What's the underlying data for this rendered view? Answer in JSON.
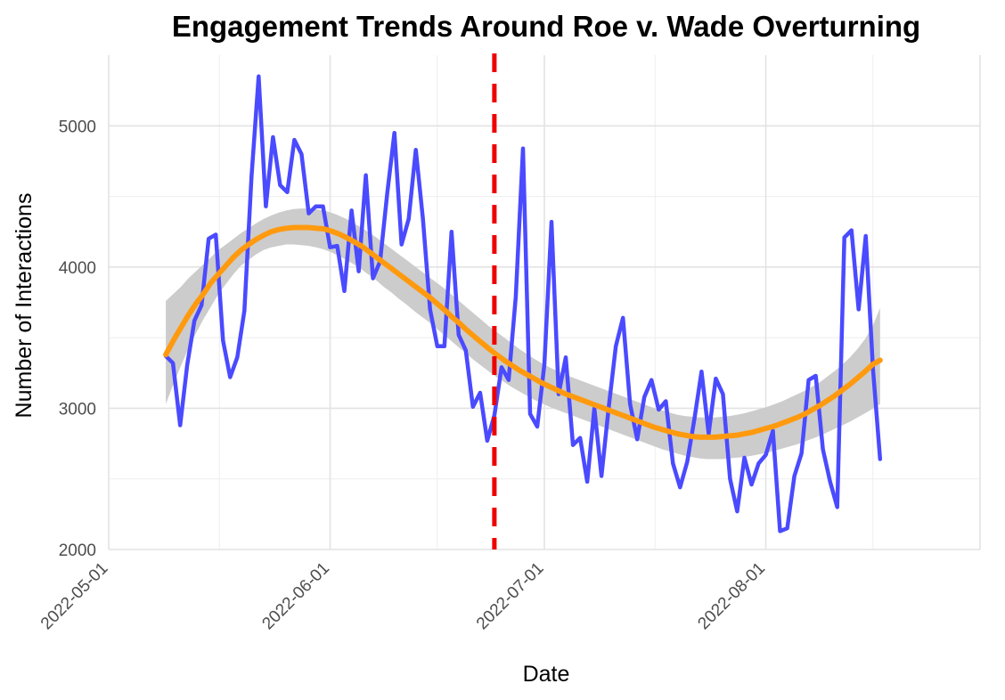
{
  "chart_data": {
    "type": "line",
    "title": "Engagement Trends Around Roe v. Wade Overturning",
    "xlabel": "Date",
    "ylabel": "Number of Interactions",
    "x_tick_labels": [
      "2022-05-01",
      "2022-06-01",
      "2022-07-01",
      "2022-08-01"
    ],
    "y_tick_labels": [
      "2000",
      "3000",
      "4000",
      "5000"
    ],
    "xlim": [
      "2022-05-01",
      "2022-08-31"
    ],
    "ylim": [
      2000,
      5500
    ],
    "grid": true,
    "legend": "none",
    "start_date": "2022-05-09",
    "series": [
      {
        "values": [
          3370,
          3320,
          2880,
          3310,
          3620,
          3730,
          4200,
          4230,
          3480,
          3220,
          3360,
          3690,
          4640,
          5350,
          4430,
          4920,
          4580,
          4530,
          4900,
          4800,
          4380,
          4430,
          4430,
          4140,
          4150,
          3830,
          4400,
          3970,
          4650,
          3920,
          4040,
          4520,
          4950,
          4160,
          4340,
          4830,
          4340,
          3700,
          3440,
          3440,
          4250,
          3520,
          3410,
          3010,
          3110,
          2770,
          2950,
          3290,
          3200,
          3790,
          4840,
          2960,
          2870,
          3310,
          4320,
          3100,
          3360,
          2740,
          2790,
          2480,
          3000,
          2520,
          3000,
          3440,
          3640,
          3030,
          2780,
          3080,
          3200,
          2990,
          3050,
          2610,
          2440,
          2620,
          2920,
          3260,
          2820,
          3210,
          3100,
          2500,
          2270,
          2650,
          2460,
          2610,
          2670,
          2840,
          2130,
          2150,
          2520,
          2680,
          3200,
          3230,
          2710,
          2480,
          2300,
          4210,
          4260,
          3700,
          4220,
          3280,
          2640
        ]
      },
      {
        "values": [
          3380,
          3480,
          3570,
          3660,
          3740,
          3810,
          3890,
          3950,
          4010,
          4070,
          4120,
          4160,
          4195,
          4225,
          4250,
          4265,
          4275,
          4280,
          4280,
          4280,
          4275,
          4270,
          4255,
          4235,
          4210,
          4180,
          4150,
          4110,
          4070,
          4030,
          3990,
          3950,
          3910,
          3870,
          3830,
          3790,
          3745,
          3700,
          3650,
          3605,
          3555,
          3510,
          3465,
          3420,
          3380,
          3340,
          3305,
          3270,
          3240,
          3210,
          3180,
          3155,
          3130,
          3105,
          3085,
          3065,
          3045,
          3025,
          3005,
          2985,
          2965,
          2945,
          2925,
          2905,
          2885,
          2865,
          2850,
          2835,
          2820,
          2810,
          2800,
          2795,
          2795,
          2795,
          2800,
          2805,
          2810,
          2820,
          2830,
          2845,
          2860,
          2875,
          2895,
          2915,
          2935,
          2960,
          2990,
          3020,
          3055,
          3090,
          3130,
          3170,
          3215,
          3260,
          3310,
          3340
        ],
        "lower": [
          3030,
          3170,
          3300,
          3420,
          3530,
          3630,
          3720,
          3810,
          3880,
          3950,
          4010,
          4050,
          4090,
          4120,
          4140,
          4150,
          4160,
          4160,
          4155,
          4150,
          4140,
          4125,
          4105,
          4080,
          4050,
          4020,
          3985,
          3945,
          3905,
          3860,
          3820,
          3775,
          3735,
          3690,
          3650,
          3610,
          3565,
          3520,
          3475,
          3430,
          3385,
          3340,
          3300,
          3260,
          3220,
          3185,
          3150,
          3120,
          3090,
          3060,
          3035,
          3010,
          2990,
          2970,
          2950,
          2930,
          2910,
          2890,
          2870,
          2850,
          2830,
          2810,
          2790,
          2770,
          2750,
          2730,
          2710,
          2695,
          2680,
          2665,
          2655,
          2645,
          2640,
          2640,
          2640,
          2645,
          2650,
          2655,
          2665,
          2675,
          2685,
          2700,
          2715,
          2730,
          2745,
          2765,
          2785,
          2805,
          2830,
          2855,
          2880,
          2905,
          2935,
          2965,
          2995,
          3030
        ],
        "upper": [
          3760,
          3810,
          3860,
          3920,
          3970,
          4020,
          4070,
          4120,
          4160,
          4200,
          4240,
          4275,
          4310,
          4340,
          4365,
          4385,
          4400,
          4410,
          4415,
          4415,
          4410,
          4400,
          4385,
          4365,
          4340,
          4310,
          4280,
          4245,
          4210,
          4170,
          4130,
          4090,
          4050,
          4010,
          3970,
          3930,
          3890,
          3850,
          3805,
          3760,
          3715,
          3670,
          3625,
          3580,
          3540,
          3500,
          3460,
          3420,
          3385,
          3350,
          3320,
          3290,
          3265,
          3240,
          3220,
          3200,
          3180,
          3160,
          3140,
          3120,
          3100,
          3080,
          3060,
          3040,
          3020,
          3000,
          2985,
          2970,
          2955,
          2945,
          2940,
          2935,
          2935,
          2935,
          2940,
          2945,
          2955,
          2965,
          2980,
          2995,
          3010,
          3030,
          3050,
          3075,
          3100,
          3125,
          3155,
          3185,
          3225,
          3265,
          3310,
          3360,
          3420,
          3490,
          3580,
          3710
        ]
      }
    ],
    "annotations": [
      {
        "type": "vline",
        "x": "2022-06-24"
      }
    ],
    "colors": {
      "daily": "#4a4aff",
      "smooth": "#ff9a0f",
      "band": "#cccccc",
      "vline": "#ee0000"
    }
  }
}
